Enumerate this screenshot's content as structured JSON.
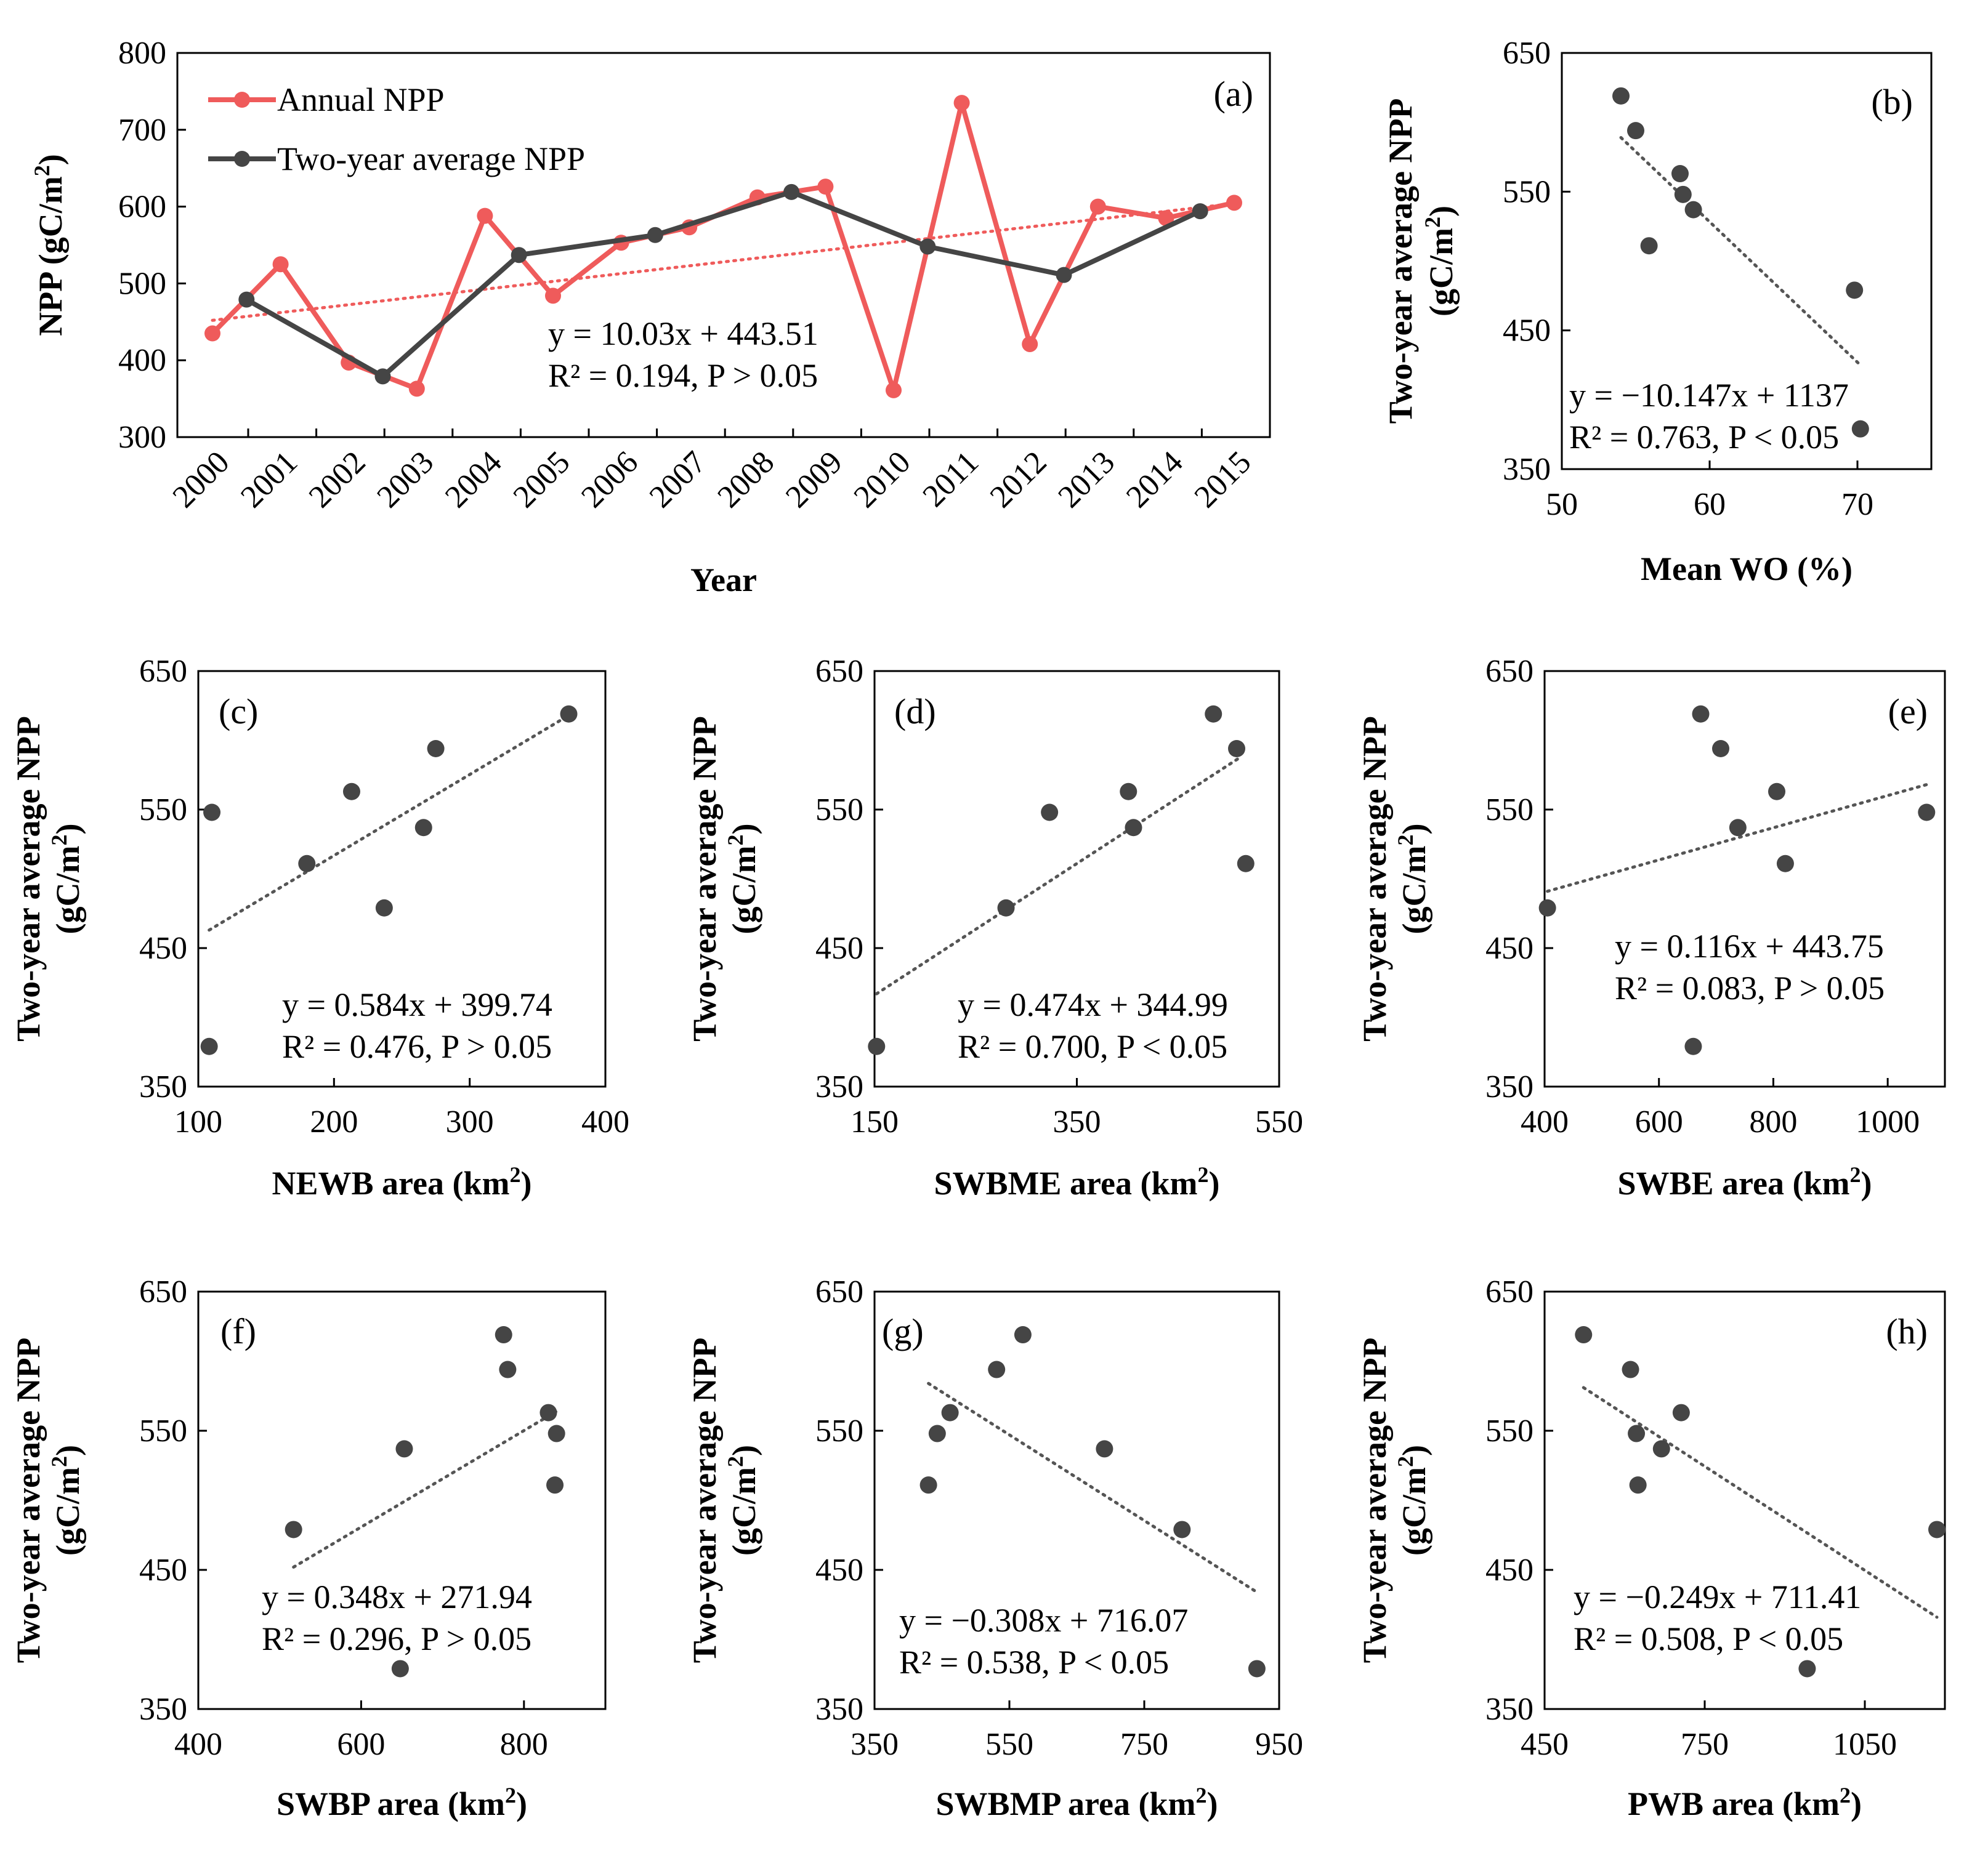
{
  "colors": {
    "annual": "#ef5b5b",
    "twoyear": "#454545",
    "axis": "#000000",
    "trend": "#555555"
  },
  "chart_data": [
    {
      "id": "a",
      "type": "line",
      "panel_label": "(a)",
      "xlabel": "Year",
      "ylabel_main": "NPP (gC/m",
      "ylabel_sup": "2",
      "ylabel_end": ")",
      "ylim": [
        300,
        800
      ],
      "yticks": [
        "300",
        "400",
        "500",
        "600",
        "700",
        "800"
      ],
      "categories": [
        "2000",
        "2001",
        "2002",
        "2003",
        "2004",
        "2005",
        "2006",
        "2007",
        "2008",
        "2009",
        "2010",
        "2011",
        "2012",
        "2013",
        "2014",
        "2015"
      ],
      "series": [
        {
          "name": "Annual NPP",
          "x": [
            0,
            1,
            2,
            3,
            4,
            5,
            6,
            7,
            8,
            9,
            10,
            11,
            12,
            13,
            14,
            15
          ],
          "values": [
            435,
            525,
            397,
            363,
            588,
            484,
            553,
            573,
            612,
            626,
            361,
            735,
            421,
            600,
            585,
            605
          ]
        },
        {
          "name": "Two-year average NPP",
          "x": [
            0.5,
            2.5,
            4.5,
            6.5,
            8.5,
            10.5,
            12.5,
            14.5
          ],
          "values": [
            479,
            379,
            537,
            563,
            619,
            548,
            511,
            594
          ]
        }
      ],
      "trendline": {
        "x": [
          0,
          15
        ],
        "values": [
          452,
          604
        ]
      },
      "equation": "y = 10.03x + 443.51",
      "r2": "R² = 0.194, P > 0.05"
    },
    {
      "id": "b",
      "type": "scatter",
      "panel_label": "(b)",
      "xlabel": "Mean WO (%)",
      "ylabel_1": "Two-year average NPP",
      "ylabel_2_main": "(gC/m",
      "ylabel_2_sup": "2",
      "ylabel_2_end": ")",
      "xlim": [
        50,
        75
      ],
      "ylim": [
        350,
        650
      ],
      "xticks": [
        50,
        60,
        70
      ],
      "yticks": [
        350,
        450,
        550,
        650
      ],
      "x": [
        54.0,
        55.0,
        55.9,
        58.0,
        58.2,
        58.9,
        69.8,
        70.2
      ],
      "y": [
        619,
        594,
        511,
        563,
        548,
        537,
        479,
        379
      ],
      "trendline": {
        "x": [
          54.0,
          70.2
        ],
        "y": [
          589,
          425
        ]
      },
      "equation": "y = −10.147x + 1137",
      "r2": "R² = 0.763, P < 0.05"
    },
    {
      "id": "c",
      "type": "scatter",
      "panel_label": "(c)",
      "xlabel_main": "NEWB area (km",
      "xlabel_sup": "2",
      "xlabel_end": ")",
      "ylabel_1": "Two-year average NPP",
      "ylabel_2_main": "(gC/m",
      "ylabel_2_sup": "2",
      "ylabel_2_end": ")",
      "xlim": [
        100,
        400
      ],
      "ylim": [
        350,
        650
      ],
      "xticks": [
        100,
        200,
        300,
        400
      ],
      "yticks": [
        350,
        450,
        550,
        650
      ],
      "x": [
        110,
        108,
        180,
        213,
        237,
        266,
        275,
        373
      ],
      "y": [
        548,
        379,
        511,
        563,
        479,
        537,
        594,
        619
      ],
      "trendline": {
        "x": [
          108,
          373
        ],
        "y": [
          463,
          618
        ]
      },
      "equation": "y = 0.584x + 399.74",
      "r2": "R² = 0.476, P > 0.05"
    },
    {
      "id": "d",
      "type": "scatter",
      "panel_label": "(d)",
      "xlabel_main": "SWBME area (km",
      "xlabel_sup": "2",
      "xlabel_end": ")",
      "ylabel_1": "Two-year average NPP",
      "ylabel_2_main": "(gC/m",
      "ylabel_2_sup": "2",
      "ylabel_2_end": ")",
      "xlim": [
        150,
        550
      ],
      "ylim": [
        350,
        650
      ],
      "xticks": [
        150,
        350,
        550
      ],
      "yticks": [
        350,
        450,
        550,
        650
      ],
      "x": [
        152,
        280,
        323,
        401,
        406,
        485,
        508,
        517
      ],
      "y": [
        379,
        479,
        548,
        563,
        537,
        619,
        594,
        511
      ],
      "trendline": {
        "x": [
          152,
          510
        ],
        "y": [
          417,
          587
        ]
      },
      "equation": "y = 0.474x + 344.99",
      "r2": "R² = 0.700, P < 0.05"
    },
    {
      "id": "e",
      "type": "scatter",
      "panel_label": "(e)",
      "xlabel_main": "SWBE area (km",
      "xlabel_sup": "2",
      "xlabel_end": ")",
      "ylabel_1": "Two-year average NPP",
      "ylabel_2_main": "(gC/m",
      "ylabel_2_sup": "2",
      "ylabel_2_end": ")",
      "xlim": [
        400,
        1100
      ],
      "ylim": [
        350,
        650
      ],
      "xticks": [
        400,
        600,
        800,
        1000
      ],
      "yticks": [
        350,
        450,
        550,
        650
      ],
      "x": [
        405,
        660,
        673,
        708,
        738,
        806,
        821,
        1068
      ],
      "y": [
        479,
        379,
        619,
        594,
        537,
        563,
        511,
        548
      ],
      "trendline": {
        "x": [
          405,
          1068
        ],
        "y": [
          491,
          568
        ]
      },
      "equation": "y = 0.116x + 443.75",
      "r2": "R² = 0.083, P > 0.05"
    },
    {
      "id": "f",
      "type": "scatter",
      "panel_label": "(f)",
      "xlabel_main": "SWBP area (km",
      "xlabel_sup": "2",
      "xlabel_end": ")",
      "ylabel_1": "Two-year average NPP",
      "ylabel_2_main": "(gC/m",
      "ylabel_2_sup": "2",
      "ylabel_2_end": ")",
      "xlim": [
        400,
        900
      ],
      "ylim": [
        350,
        650
      ],
      "xticks": [
        400,
        600,
        800
      ],
      "yticks": [
        350,
        450,
        550,
        650
      ],
      "x": [
        517,
        648,
        653,
        775,
        780,
        830,
        840,
        838
      ],
      "y": [
        479,
        379,
        537,
        619,
        594,
        563,
        548,
        511
      ],
      "trendline": {
        "x": [
          517,
          840
        ],
        "y": [
          452,
          564
        ]
      },
      "equation": "y = 0.348x + 271.94",
      "r2": "R² = 0.296, P > 0.05"
    },
    {
      "id": "g",
      "type": "scatter",
      "panel_label": "(g)",
      "xlabel_main": "SWBMP area (km",
      "xlabel_sup": "2",
      "xlabel_end": ")",
      "ylabel_1": "Two-year average NPP",
      "ylabel_2_main": "(gC/m",
      "ylabel_2_sup": "2",
      "ylabel_2_end": ")",
      "xlim": [
        350,
        950
      ],
      "ylim": [
        350,
        650
      ],
      "xticks": [
        350,
        550,
        750,
        950
      ],
      "yticks": [
        350,
        450,
        550,
        650
      ],
      "x": [
        430,
        443,
        462,
        531,
        570,
        691,
        806,
        917
      ],
      "y": [
        511,
        548,
        563,
        594,
        619,
        537,
        479,
        379
      ],
      "trendline": {
        "x": [
          430,
          917
        ],
        "y": [
          584,
          434
        ]
      },
      "equation": "y = −0.308x + 716.07",
      "r2": "R² = 0.538, P < 0.05"
    },
    {
      "id": "h",
      "type": "scatter",
      "panel_label": "(h)",
      "xlabel_main": "PWB area (km",
      "xlabel_sup": "2",
      "xlabel_end": ")",
      "ylabel_1": "Two-year average NPP",
      "ylabel_2_main": "(gC/m",
      "ylabel_2_sup": "2",
      "ylabel_2_end": ")",
      "xlim": [
        450,
        1200
      ],
      "ylim": [
        350,
        650
      ],
      "xticks": [
        450,
        750,
        1050
      ],
      "yticks": [
        350,
        450,
        550,
        650
      ],
      "x": [
        523,
        611,
        622,
        625,
        669,
        706,
        942,
        1185
      ],
      "y": [
        619,
        594,
        548,
        511,
        537,
        563,
        379,
        479
      ],
      "trendline": {
        "x": [
          523,
          1185
        ],
        "y": [
          581,
          416
        ]
      },
      "equation": "y = −0.249x + 711.41",
      "r2": "R² = 0.508, P < 0.05"
    }
  ]
}
